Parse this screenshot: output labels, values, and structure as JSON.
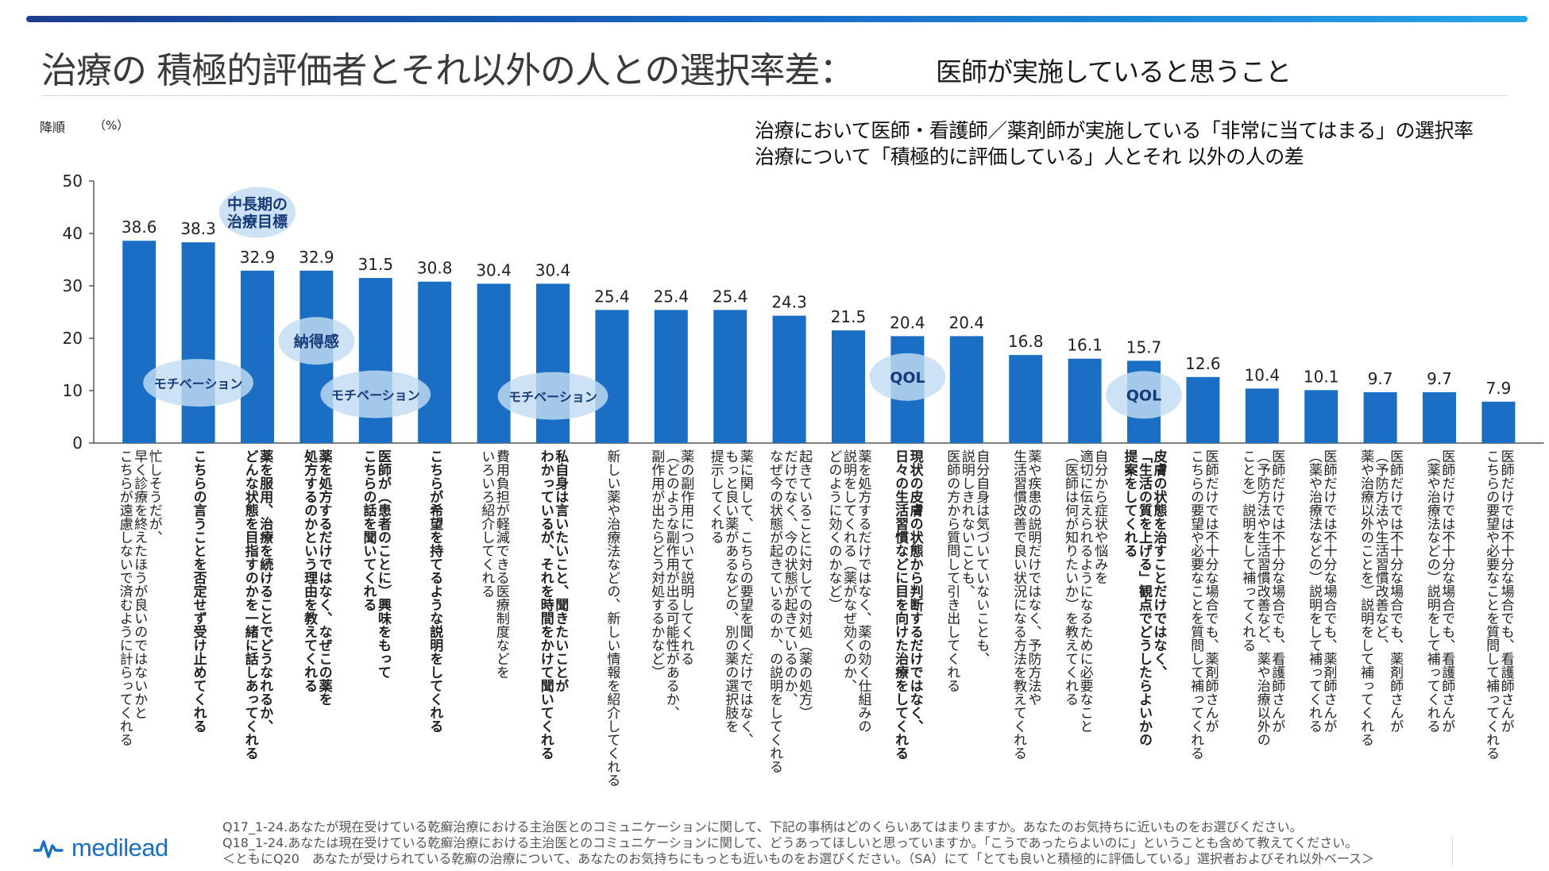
{
  "header": {
    "title": "治療の 積極的評価者とそれ以外の人との選択率差：",
    "subtitle": "医師が実施していると思うこと",
    "sort_label": "降順",
    "unit_label": "（%）",
    "description_line1": "治療において医師・看護師／薬剤師が実施している「非常に当てはまる」の選択率",
    "description_line2": "治療について「積極的に評価している」人とそれ 以外の人の差"
  },
  "chart_data": {
    "type": "bar",
    "bar_color": "#1a6fc4",
    "ylim": [
      0,
      50
    ],
    "yticks": [
      0,
      10,
      20,
      30,
      40,
      50
    ],
    "values": [
      38.6,
      38.3,
      32.9,
      32.9,
      31.5,
      30.8,
      30.4,
      30.4,
      25.4,
      25.4,
      25.4,
      24.3,
      21.5,
      20.4,
      20.4,
      16.8,
      16.1,
      15.7,
      12.6,
      10.4,
      10.1,
      9.7,
      9.7,
      7.9
    ],
    "value_labels": [
      "38.6",
      "38.3",
      "32.9",
      "32.9",
      "31.5",
      "30.8",
      "30.4",
      "30.4",
      "25.4",
      "25.4",
      "25.4",
      "24.3",
      "21.5",
      "20.4",
      "20.4",
      "16.8",
      "16.1",
      "15.7",
      "12.6",
      "10.4",
      "10.1",
      "9.7",
      "9.7",
      "7.9"
    ],
    "categories": [
      {
        "lines": [
          "忙しそうだが、",
          "早く診療を終えたほうが良いのではないかと",
          "こちらが遠慮しないで済むように計らってくれる"
        ],
        "bold": false
      },
      {
        "lines": [
          "こちらの言うことを否定せず受け止めてくれる"
        ],
        "bold": true
      },
      {
        "lines": [
          "薬を服用、治療を続けることでどうなれるか、",
          "どんな状態を目指すのかを一緒に話しあってくれる"
        ],
        "bold": true
      },
      {
        "lines": [
          "薬を処方するだけではなく、なぜこの薬を",
          "処方するのかという理由を教えてくれる"
        ],
        "bold": true
      },
      {
        "lines": [
          "医師が（患者のことに）興味をもって",
          "こちらの話を聞いてくれる"
        ],
        "bold": true
      },
      {
        "lines": [
          "こちらが希望を持てるような説明をしてくれる"
        ],
        "bold": true
      },
      {
        "lines": [
          "費用負担が軽減できる医療制度などを",
          "いろいろ紹介してくれる"
        ],
        "bold": false
      },
      {
        "lines": [
          "私自身は言いたいこと、聞きたいことが",
          "わかっているが、それを時間をかけて聞いてくれる"
        ],
        "bold": true
      },
      {
        "lines": [
          "新しい薬や治療法などの、新しい情報を紹介してくれる"
        ],
        "bold": false
      },
      {
        "lines": [
          "薬の副作用について説明してくれる",
          "（どのような副作用が出る可能性があるか、",
          "副作用が出たらどう対処するかなど）"
        ],
        "bold": false
      },
      {
        "lines": [
          "薬に関して、こちらの要望を聞くだけではなく、",
          "もっと良い薬があるなどの、別の薬の選択肢を",
          "提示してくれる"
        ],
        "bold": false
      },
      {
        "lines": [
          "起きていることに対しての対処（薬の処方）",
          "だけでなく、今の状態が起きているのか、",
          "なぜ今の状態が起きているのか、の説明をしてくれる"
        ],
        "bold": false
      },
      {
        "lines": [
          "薬を処方するだけではなく、薬の効く仕組みの",
          "説明をしてくれる（薬がなぜ効くのか、",
          "どのように効くのかなど）"
        ],
        "bold": false
      },
      {
        "lines": [
          "現状の皮膚の状態から判断するだけではなく、",
          "日々の生活習慣などに目を向けた治療をしてくれる"
        ],
        "bold": true
      },
      {
        "lines": [
          "自分自身は気づいていないことも、",
          "説明しきれないことも、",
          "医師の方から質問して引き出してくれる"
        ],
        "bold": false
      },
      {
        "lines": [
          "薬や疾患の説明だけではなく、予防方法や",
          "生活習慣改善で良い状況になる方法を教えてくれる"
        ],
        "bold": false
      },
      {
        "lines": [
          "自分から症状や悩みを",
          "適切に伝えられるようになるために必要なこと",
          "（医師は何が知りたいか）を教えてくれる"
        ],
        "bold": false
      },
      {
        "lines": [
          "皮膚の状態を治すことだけではなく、",
          "「生活の質を上げる」観点でどうしたらよいかの",
          "提案をしてくれる"
        ],
        "bold": true
      },
      {
        "lines": [
          "医師だけでは不十分な場合でも、薬剤師さんが",
          "こちらの要望や必要なことを質問して補ってくれる"
        ],
        "bold": false
      },
      {
        "lines": [
          "医師だけでは不十分な場合でも、看護師さんが",
          "（予防方法や生活習慣改善など、薬や治療以外の",
          "ことを）説明をして補ってくれる"
        ],
        "bold": false
      },
      {
        "lines": [
          "医師だけでは不十分な場合でも、薬剤師さんが",
          "（薬や治療法などの）説明をして補ってくれる"
        ],
        "bold": false
      },
      {
        "lines": [
          "医師だけでは不十分な場合でも、薬剤師さんが",
          "（予防方法や生活習慣改善など、",
          "薬や治療以外のことを）説明をして補ってくれる"
        ],
        "bold": false
      },
      {
        "lines": [
          "医師だけでは不十分な場合でも、看護師さんが",
          "（薬や治療法などの）説明をして補ってくれる"
        ],
        "bold": false
      },
      {
        "lines": [
          "医師だけでは不十分な場合でも、看護師さんが",
          "こちらの要望や必要なことを質問して補ってくれる"
        ],
        "bold": false
      }
    ],
    "annotations": [
      {
        "text": [
          "モチベーション"
        ],
        "bar": 1,
        "value": 11.5
      },
      {
        "text": [
          "中長期の",
          "治療目標"
        ],
        "bar": 2,
        "value": 44.0
      },
      {
        "text": [
          "納得感"
        ],
        "bar": 3,
        "value": 19.5
      },
      {
        "text": [
          "モチベーション"
        ],
        "bar": 4,
        "value": 9.3
      },
      {
        "text": [
          "モチベーション"
        ],
        "bar": 7,
        "value": 9.0
      },
      {
        "text": [
          "QOL"
        ],
        "bar": 13,
        "value": 12.6
      },
      {
        "text": [
          "QOL"
        ],
        "bar": 17,
        "value": 9.2
      }
    ]
  },
  "footnotes": [
    "Q17_1-24.あなたが現在受けている乾癬治療における主治医とのコミュニケーションに関して、下記の事柄はどのくらいあてはまりますか。あなたのお気持ちに近いものをお選びください。",
    "Q18_1-24.あなたは現在受けている乾癬治療における主治医とのコミュニケーションに関して、どうあってほしいと思っていますか。「こうであったらよいのに」ということも含めて教えてください。",
    "＜ともにQ20　あなたが受けられている乾癬の治療について、あなたのお気持ちにもっとも近いものをお選びください。（SA）にて「とても良いと積極的に評価している」選択者およびそれ以外ベース＞"
  ],
  "logo": {
    "text": "medilead",
    "icon": "pulse-icon"
  }
}
